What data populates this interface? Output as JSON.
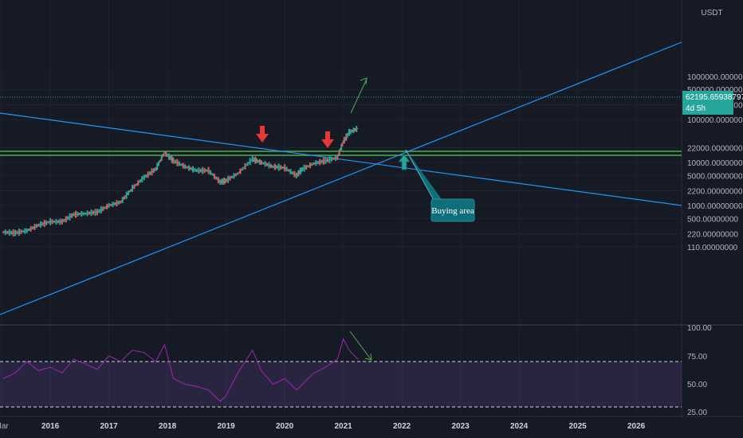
{
  "chart_data": [
    {
      "type": "line",
      "pair_unit": "USDT",
      "scale": "log",
      "ylim": [
        100,
        1000000
      ],
      "price_ticks": [
        "1000000.00000000",
        "500000.00000000",
        "220000.00000000",
        "100000.00000000",
        "22000.00000000",
        "10000.00000000",
        "5000.00000000",
        "2200.00000000",
        "1000.00000000",
        "500.00000000",
        "220.00000000",
        "110.00000000"
      ],
      "x_ticks": [
        "Mar",
        "2016",
        "2017",
        "2018",
        "2019",
        "2020",
        "2021",
        "2022",
        "2023",
        "2024",
        "2025",
        "2026"
      ],
      "last_price": "62195.65938797",
      "countdown": "4d 5h",
      "annotations": {
        "buying_area": "Buying area"
      },
      "series": [
        {
          "x": [
            2015.2,
            2015.4,
            2015.6,
            2015.8,
            2016.0,
            2016.2,
            2016.4,
            2016.6,
            2016.8,
            2017.0,
            2017.2,
            2017.4,
            2017.6,
            2017.8,
            2017.95,
            2018.1,
            2018.3,
            2018.5,
            2018.7,
            2018.9,
            2019.0,
            2019.2,
            2019.45,
            2019.6,
            2019.8,
            2020.0,
            2020.2,
            2020.3,
            2020.5,
            2020.7,
            2020.9,
            2021.0,
            2021.1,
            2021.25
          ],
          "y": [
            240,
            230,
            260,
            350,
            420,
            420,
            620,
            650,
            700,
            1000,
            1200,
            2500,
            4500,
            7000,
            17000,
            11000,
            8000,
            6500,
            6500,
            3500,
            3800,
            5500,
            12000,
            10000,
            8000,
            7500,
            5000,
            7000,
            9500,
            11000,
            13000,
            30000,
            50000,
            62195
          ]
        }
      ]
    },
    {
      "type": "line",
      "indicator": "RSI",
      "ylim": [
        20,
        100
      ],
      "y_ticks": [
        "100.00",
        "75.00",
        "50.00",
        "25.00"
      ],
      "bands": [
        70,
        30
      ],
      "series": [
        {
          "x": [
            2015.2,
            2015.4,
            2015.6,
            2015.8,
            2016.0,
            2016.2,
            2016.4,
            2016.6,
            2016.8,
            2017.0,
            2017.2,
            2017.4,
            2017.6,
            2017.8,
            2017.95,
            2018.1,
            2018.3,
            2018.5,
            2018.7,
            2018.9,
            2019.0,
            2019.2,
            2019.45,
            2019.6,
            2019.8,
            2020.0,
            2020.2,
            2020.3,
            2020.5,
            2020.7,
            2020.9,
            2021.0,
            2021.1,
            2021.25
          ],
          "y": [
            55,
            60,
            70,
            62,
            65,
            60,
            72,
            68,
            63,
            75,
            70,
            80,
            78,
            70,
            85,
            55,
            50,
            48,
            45,
            35,
            40,
            60,
            80,
            62,
            50,
            55,
            45,
            50,
            60,
            65,
            72,
            90,
            80,
            72
          ]
        }
      ]
    }
  ]
}
